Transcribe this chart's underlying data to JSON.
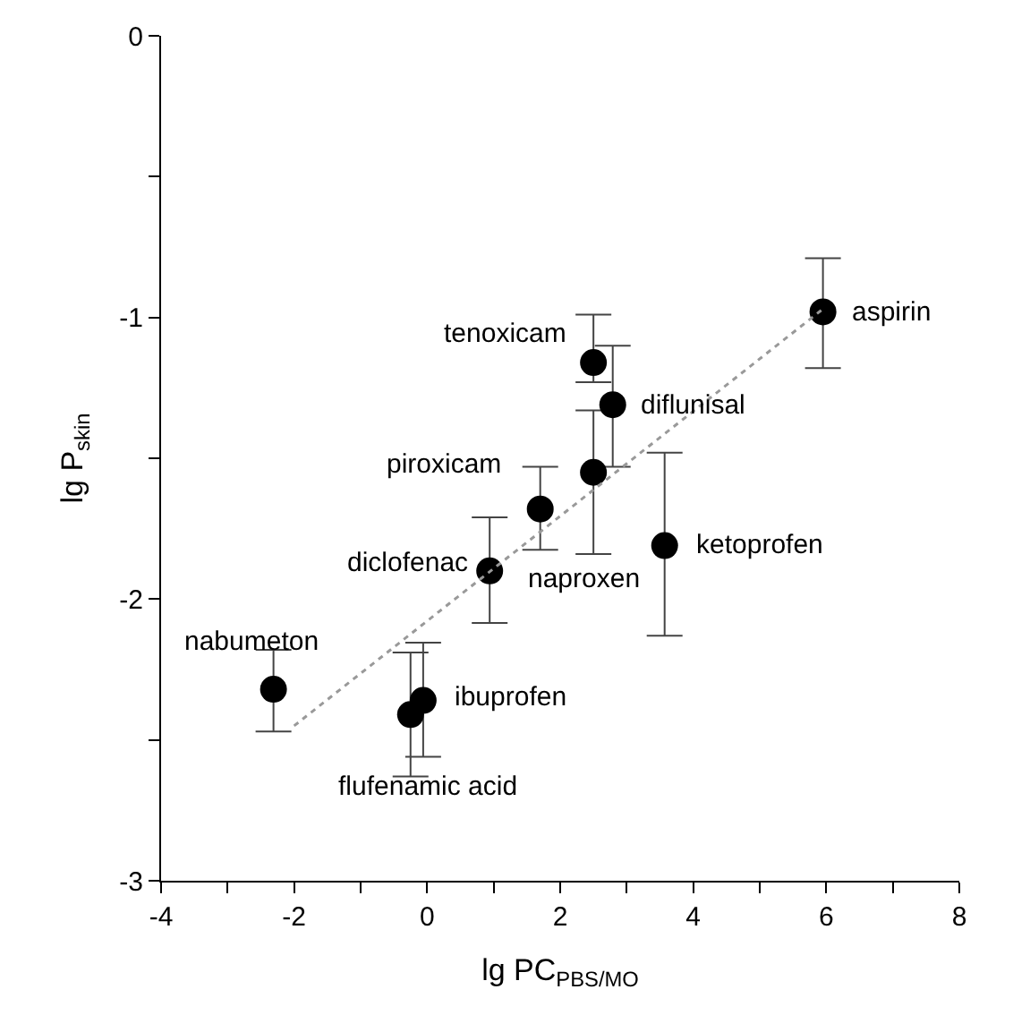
{
  "chart_data": {
    "type": "scatter",
    "xlabel": "lg PC$_{PBS/MO}$",
    "ylabel": "lg P$_{skin}$",
    "xlim": [
      -4,
      8
    ],
    "ylim": [
      -3,
      0
    ],
    "xticks": [
      -4,
      {
        "value": -3,
        "label": null
      },
      -2,
      {
        "value": -1,
        "label": null
      },
      0,
      {
        "value": 1,
        "label": null
      },
      2,
      {
        "value": 3,
        "label": null
      },
      4,
      {
        "value": 5,
        "label": null
      },
      6,
      {
        "value": 7,
        "label": null
      },
      8
    ],
    "yticks": [
      -3,
      {
        "value": -2.5,
        "label": null
      },
      -2,
      {
        "value": -1.5,
        "label": null
      },
      -1,
      {
        "value": -0.5,
        "label": null
      },
      0
    ],
    "marker": "circle",
    "series": [
      {
        "type": "scatter",
        "color": "#000000",
        "x": [
          5.95,
          2.5,
          2.79,
          1.7,
          2.5,
          0.94,
          3.57,
          -2.31,
          -0.06,
          -0.25
        ],
        "values": [
          -0.98,
          -1.16,
          -1.31,
          -1.68,
          -1.55,
          -1.9,
          -1.81,
          -2.32,
          -2.36,
          -2.41
        ],
        "errors": [
          [
            -1.18,
            -0.79
          ],
          [
            -1.23,
            -0.99
          ],
          [
            -1.53,
            -1.1
          ],
          [
            -1.825,
            -1.53
          ],
          [
            -1.84,
            -1.33
          ],
          [
            -2.085,
            -1.71
          ],
          [
            -2.13,
            -1.48
          ],
          [
            -2.47,
            -2.18
          ],
          [
            -2.56,
            -2.155
          ],
          [
            -2.63,
            -2.19
          ]
        ]
      },
      {
        "type": "line",
        "color": "#999999",
        "line_style": "dotted",
        "marker": "none",
        "x": [
          -2.0,
          5.95
        ],
        "values": [
          -2.45,
          -0.97
        ]
      }
    ],
    "annotations": [
      {
        "text": "aspirin",
        "x": 5.95,
        "y": -0.98
      },
      {
        "text": "tenoxicam",
        "x": 2.5,
        "y": -1.16
      },
      {
        "text": "diflunisal",
        "x": 2.79,
        "y": -1.31
      },
      {
        "text": "piroxicam",
        "x": 1.7,
        "y": -1.68
      },
      "naproxen",
      {
        "text": "diclofenac",
        "x": 0.94,
        "y": -1.9
      },
      {
        "text": "ketoprofen",
        "x": 3.57,
        "y": -1.81
      },
      {
        "text": "nabumeton",
        "x": -2.31,
        "y": -2.32
      },
      {
        "text": "ibuprofen",
        "x": -0.06,
        "y": -2.36
      },
      {
        "text": "flufenamic acid",
        "x": -0.25,
        "y": -2.41
      }
    ]
  }
}
